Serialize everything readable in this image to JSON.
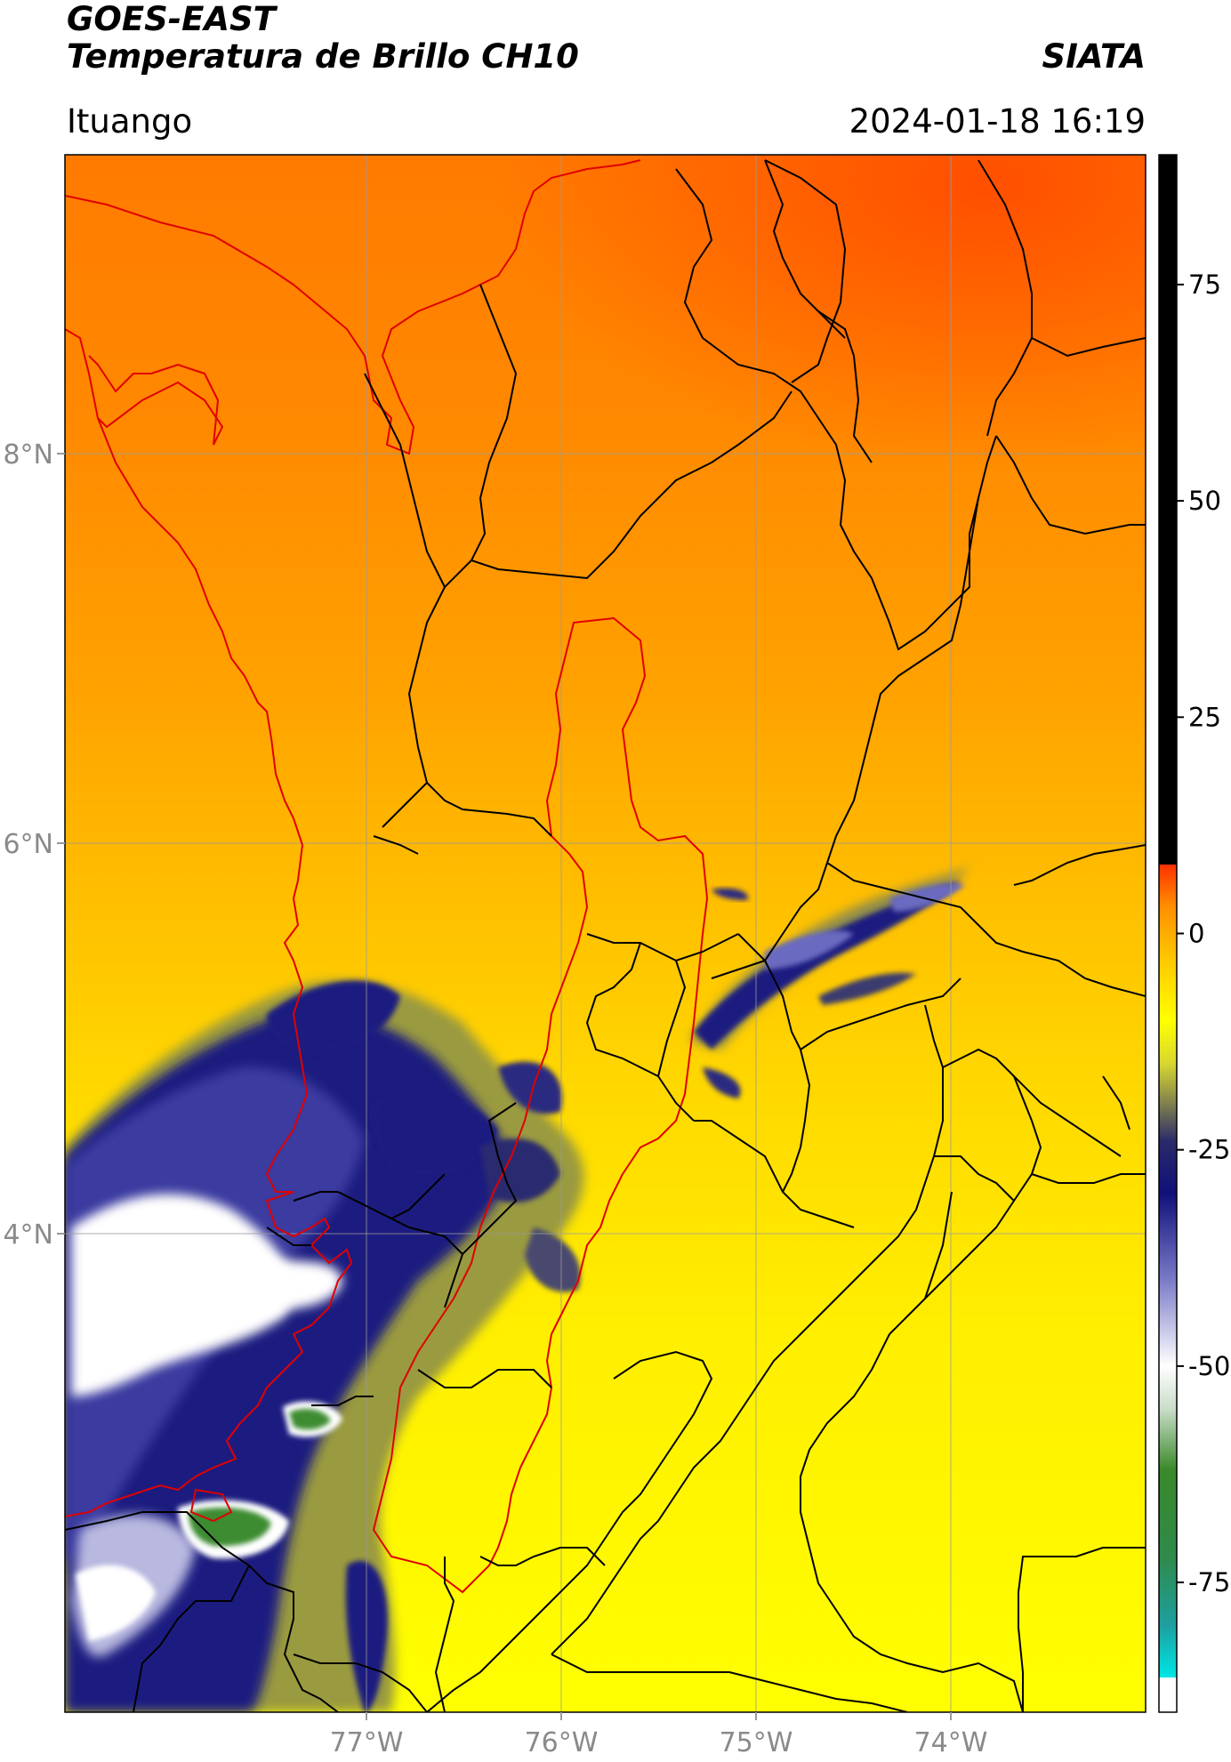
{
  "header": {
    "satellite": "GOES-EAST",
    "product": "Temperatura de Brillo CH10",
    "brand": "SIATA",
    "location": "Ituango",
    "datetime": "2024-01-18 16:19"
  },
  "map": {
    "lat_labels": [
      "8°N",
      "6°N",
      "4°N"
    ],
    "lon_labels": [
      "77°W",
      "76°W",
      "75°W",
      "74°W"
    ],
    "colors": {
      "boundary_black": "#000000",
      "boundary_red": "#e00000",
      "gridline": "#9a9a9a"
    }
  },
  "colorbar": {
    "ticks": [
      "75",
      "50",
      "25",
      "0",
      "-25",
      "-50",
      "-75"
    ],
    "tick_values": [
      75,
      50,
      25,
      0,
      -25,
      -50,
      -75
    ],
    "range": [
      -90,
      90
    ],
    "stops": [
      {
        "value": -90,
        "color": "#ffffff"
      },
      {
        "value": -86,
        "color": "#ffffff"
      },
      {
        "value": -86,
        "color": "#00e6e6"
      },
      {
        "value": -80,
        "color": "#1ea0a0"
      },
      {
        "value": -72,
        "color": "#2f8a4a"
      },
      {
        "value": -62,
        "color": "#3a8a2a"
      },
      {
        "value": -55,
        "color": "#c8dcc8"
      },
      {
        "value": -50,
        "color": "#ffffff"
      },
      {
        "value": -40,
        "color": "#7a7ac8"
      },
      {
        "value": -30,
        "color": "#10107a"
      },
      {
        "value": -24,
        "color": "#2a2a6a"
      },
      {
        "value": -20,
        "color": "#7a7a50"
      },
      {
        "value": -15,
        "color": "#d8d830"
      },
      {
        "value": -10,
        "color": "#ffff00"
      },
      {
        "value": -3,
        "color": "#ffc800"
      },
      {
        "value": 3,
        "color": "#ff9000"
      },
      {
        "value": 8,
        "color": "#ff3000"
      },
      {
        "value": 8,
        "color": "#000000"
      },
      {
        "value": 90,
        "color": "#000000"
      }
    ]
  }
}
